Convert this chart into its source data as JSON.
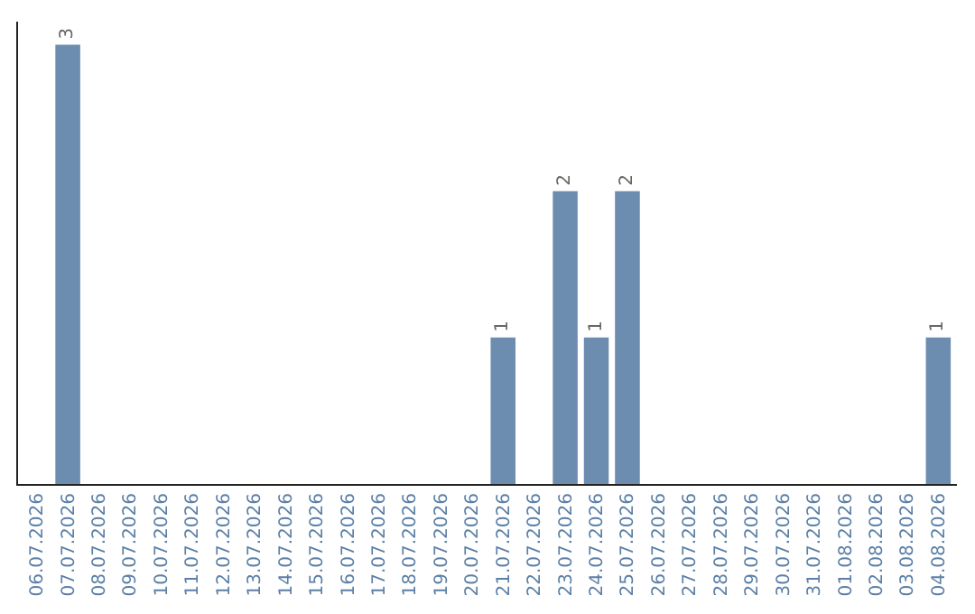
{
  "chart_data": {
    "type": "bar",
    "categories": [
      "06.07.2026",
      "07.07.2026",
      "08.07.2026",
      "09.07.2026",
      "10.07.2026",
      "11.07.2026",
      "12.07.2026",
      "13.07.2026",
      "14.07.2026",
      "15.07.2026",
      "16.07.2026",
      "17.07.2026",
      "18.07.2026",
      "19.07.2026",
      "20.07.2026",
      "21.07.2026",
      "22.07.2026",
      "23.07.2026",
      "24.07.2026",
      "25.07.2026",
      "26.07.2026",
      "27.07.2026",
      "28.07.2026",
      "29.07.2026",
      "30.07.2026",
      "31.07.2026",
      "01.08.2026",
      "02.08.2026",
      "03.08.2026",
      "04.08.2026"
    ],
    "values": [
      0,
      3,
      0,
      0,
      0,
      0,
      0,
      0,
      0,
      0,
      0,
      0,
      0,
      0,
      0,
      1,
      0,
      2,
      1,
      2,
      0,
      0,
      0,
      0,
      0,
      0,
      0,
      0,
      0,
      1
    ],
    "value_labels": [
      null,
      "3",
      null,
      null,
      null,
      null,
      null,
      null,
      null,
      null,
      null,
      null,
      null,
      null,
      null,
      "1",
      null,
      "2",
      "1",
      "2",
      null,
      null,
      null,
      null,
      null,
      null,
      null,
      null,
      null,
      "1"
    ],
    "color": "#6d8db0",
    "tick_labels": "x"
  }
}
